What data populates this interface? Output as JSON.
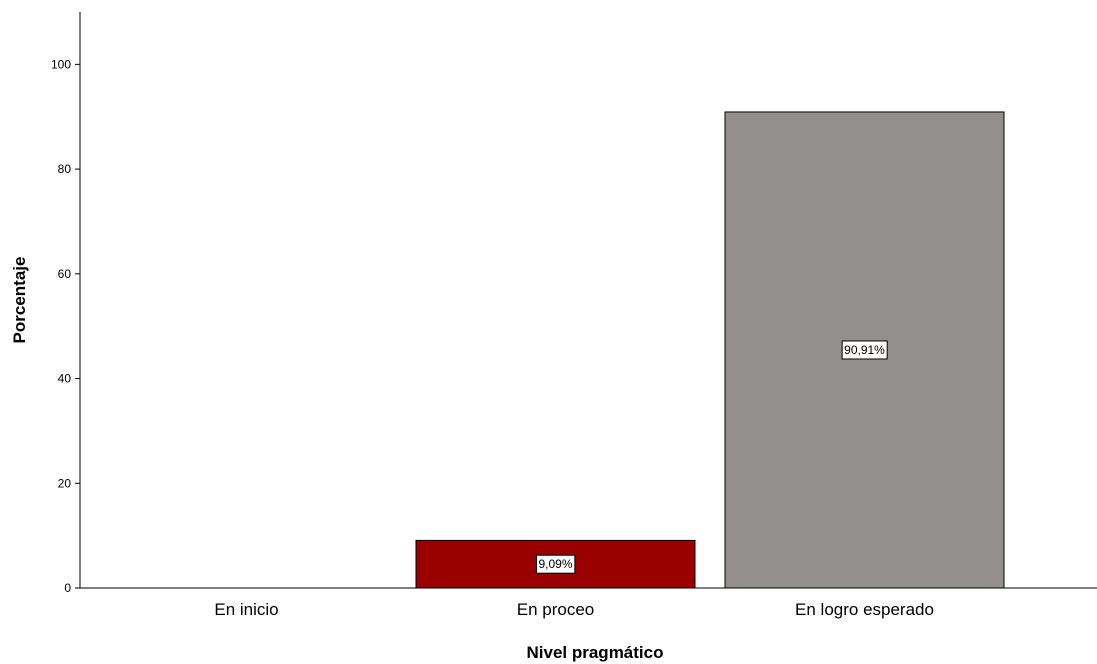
{
  "chart_data": {
    "type": "bar",
    "categories": [
      "En inicio",
      "En proceo",
      "En logro esperado"
    ],
    "values": [
      0,
      9.09,
      90.91
    ],
    "data_labels": [
      "",
      "9,09%",
      "90,91%"
    ],
    "bar_colors": [
      "#9b0000",
      "#9b0000",
      "#938f8e"
    ],
    "xlabel": "Nivel pragmático",
    "ylabel": "Porcentaje",
    "ylim": [
      0,
      110
    ],
    "yticks": [
      0,
      20,
      40,
      60,
      80,
      100
    ],
    "ytick_labels": [
      "0",
      "20",
      "40",
      "60",
      "80",
      "100"
    ],
    "grid": false,
    "legend": "none"
  }
}
